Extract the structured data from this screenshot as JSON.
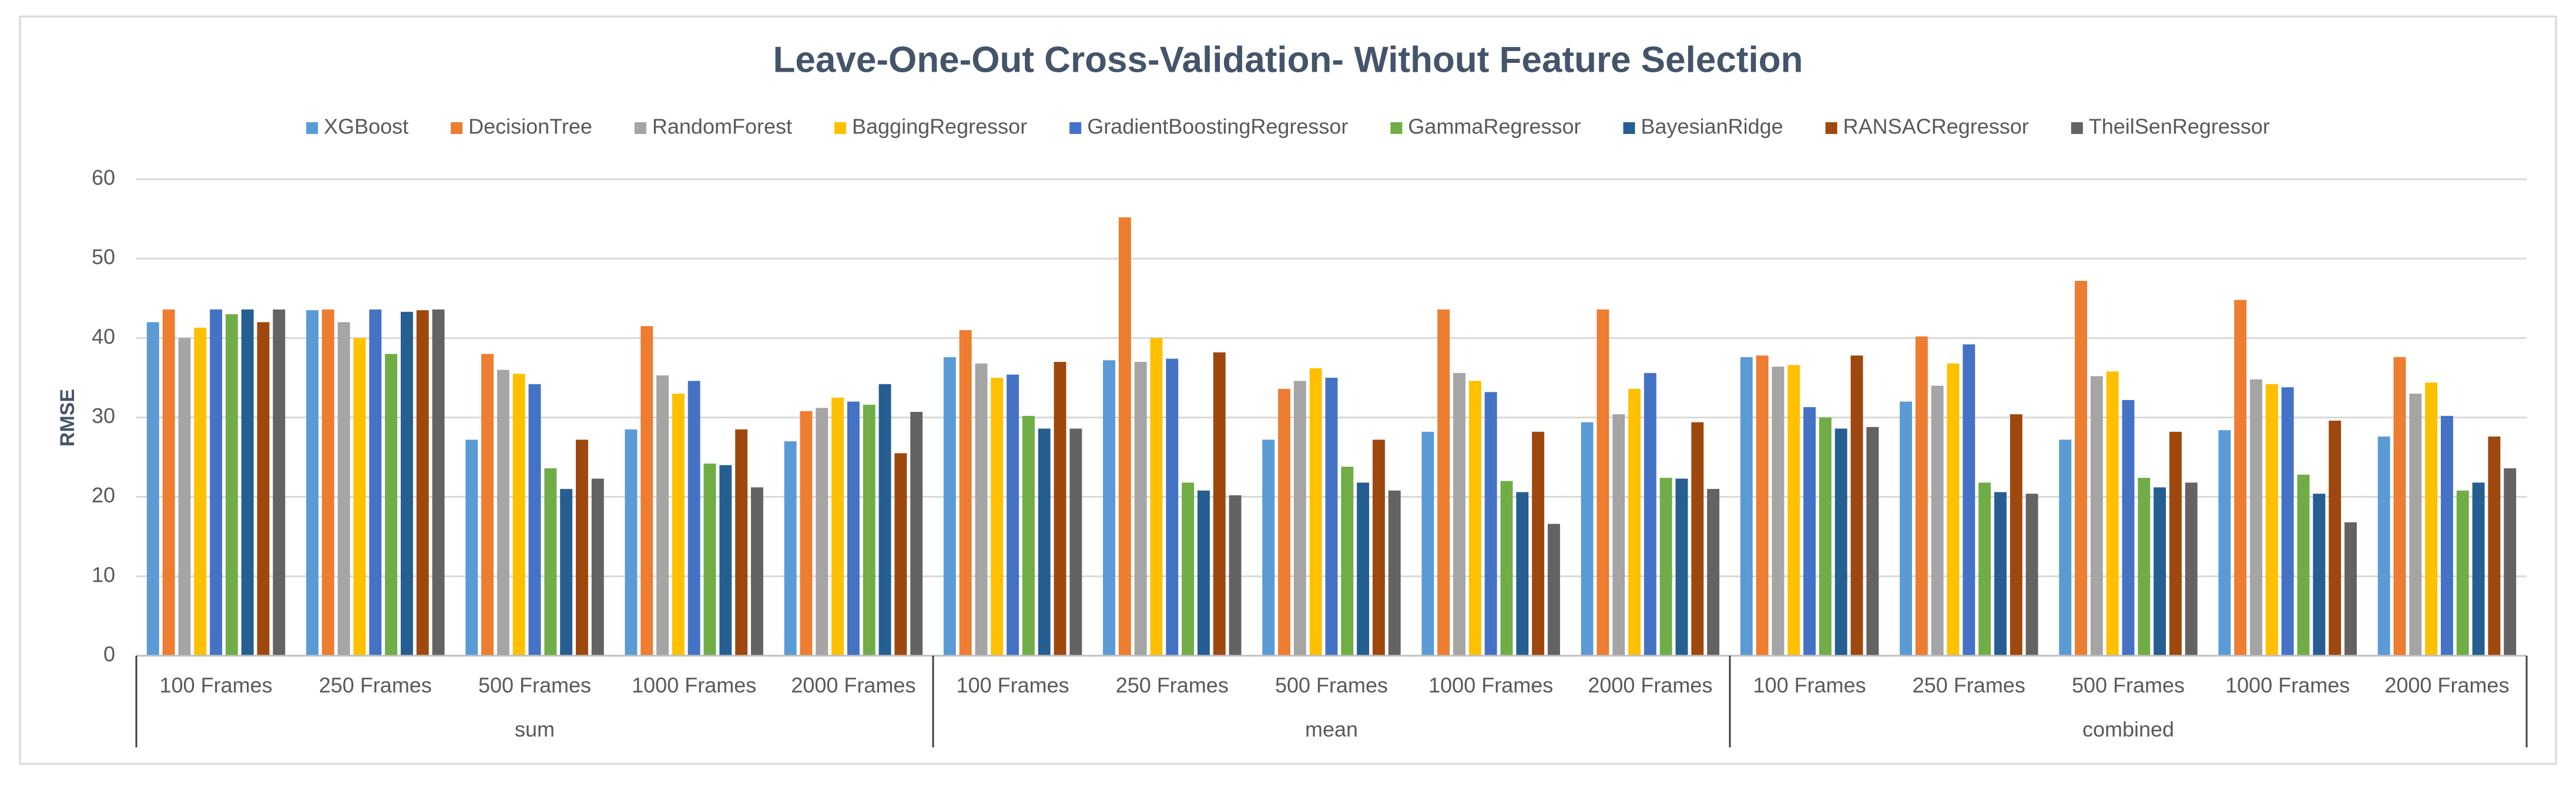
{
  "chart_data": {
    "type": "bar",
    "title": "Leave-One-Out Cross-Validation- Without Feature Selection",
    "y_label": "RMSE",
    "categories": [
      "100 Frames",
      "250 Frames",
      "500 Frames",
      "1000 Frames",
      "2000 Frames",
      "100 Frames",
      "250 Frames",
      "500 Frames",
      "1000 Frames",
      "2000 Frames",
      "100 Frames",
      "250 Frames",
      "500 Frames",
      "1000 Frames",
      "2000 Frames"
    ],
    "groups": [
      "sum",
      "mean",
      "combined"
    ],
    "ylim": [
      0,
      60
    ],
    "yticks": [
      0,
      10,
      20,
      30,
      40,
      50,
      60
    ],
    "grid": true,
    "legend": "top",
    "series": [
      {
        "name": "XGBoost",
        "color": "#5b9bd5",
        "values": [
          42,
          43.5,
          27.2,
          28.5,
          27,
          37.6,
          37.2,
          27.2,
          28.2,
          29.4,
          37.6,
          32,
          27.2,
          28.4,
          27.6
        ]
      },
      {
        "name": "DecisionTree",
        "color": "#ed7d31",
        "values": [
          43.6,
          43.6,
          38,
          41.5,
          30.8,
          41,
          55.2,
          33.6,
          43.6,
          43.6,
          37.8,
          40.2,
          47.2,
          44.8,
          37.6
        ]
      },
      {
        "name": "RandomForest",
        "color": "#a5a5a5",
        "values": [
          40,
          42,
          36,
          35.3,
          31.2,
          36.8,
          37,
          34.6,
          35.6,
          30.4,
          36.4,
          34,
          35.2,
          34.8,
          33
        ]
      },
      {
        "name": "BaggingRegressor",
        "color": "#ffc000",
        "values": [
          41.3,
          40,
          35.5,
          33,
          32.5,
          35,
          40,
          36.2,
          34.6,
          33.6,
          36.6,
          36.8,
          35.8,
          34.2,
          34.4
        ]
      },
      {
        "name": "GradientBoostingRegressor",
        "color": "#4472c4",
        "values": [
          43.6,
          43.6,
          34.2,
          34.6,
          32,
          35.4,
          37.4,
          35,
          33.2,
          35.6,
          31.3,
          39.2,
          32.2,
          33.8,
          30.2
        ]
      },
      {
        "name": "GammaRegressor",
        "color": "#70ad47",
        "values": [
          43,
          38,
          23.6,
          24.2,
          31.6,
          30.2,
          21.8,
          23.8,
          22,
          22.4,
          30,
          21.8,
          22.4,
          22.8,
          20.8
        ]
      },
      {
        "name": "BayesianRidge",
        "color": "#255e91",
        "values": [
          43.6,
          43.3,
          21,
          24,
          34.2,
          28.6,
          20.8,
          21.8,
          20.6,
          22.3,
          28.6,
          20.6,
          21.2,
          20.4,
          21.8
        ]
      },
      {
        "name": "RANSACRegressor",
        "color": "#9e480e",
        "values": [
          42,
          43.5,
          27.2,
          28.5,
          25.5,
          37,
          38.2,
          27.2,
          28.2,
          29.4,
          37.8,
          30.4,
          28.2,
          29.6,
          27.6
        ]
      },
      {
        "name": "TheilSenRegressor",
        "color": "#636363",
        "values": [
          43.6,
          43.6,
          22.3,
          21.2,
          30.7,
          28.6,
          20.2,
          20.8,
          16.6,
          21,
          28.8,
          20.4,
          21.8,
          16.8,
          23.6
        ]
      }
    ]
  }
}
